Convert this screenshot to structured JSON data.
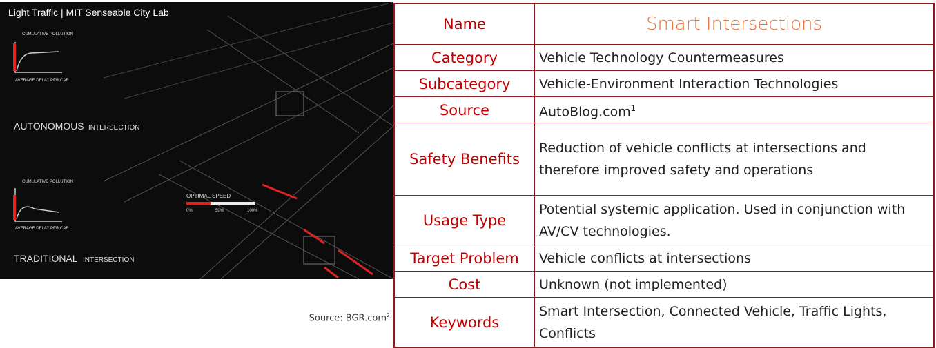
{
  "image": {
    "texts": {
      "title": "Light Traffic | MIT Senseable City Lab",
      "pollution_top": "CUMULATIVE POLLUTION",
      "delay_top": "AVERAGE DELAY PER CAR",
      "autonomous": "AUTONOMOUS",
      "autonomous_suffix": "INTERSECTION",
      "pollution_bottom": "CUMULATIVE POLLUTION",
      "delay_bottom": "AVERAGE DELAY PER CAR",
      "optimal_speed": "OPTIMAL SPEED",
      "speed_0": "0%",
      "speed_50": "50%",
      "speed_100": "100%",
      "traditional": "TRADITIONAL",
      "traditional_suffix": "INTERSECTION"
    }
  },
  "caption": {
    "text": "Source: BGR.com",
    "footnote": "2"
  },
  "table": {
    "rows": [
      [
        "Name",
        "Smart Intersections"
      ],
      [
        "Category",
        "Vehicle Technology Countermeasures"
      ],
      [
        "Subcategory",
        "Vehicle-Environment Interaction Technologies"
      ],
      [
        "Source",
        "AutoBlog.com"
      ],
      [
        "Safety Benefits",
        "Reduction of vehicle conflicts at intersections and therefore improved safety and operations"
      ],
      [
        "Usage Type",
        "Potential systemic application. Used in conjunction with AV/CV technologies."
      ],
      [
        "Target Problem",
        "Vehicle conflicts at intersections"
      ],
      [
        "Cost",
        "Unknown (not implemented)"
      ],
      [
        "Keywords",
        "Smart Intersection, Connected Vehicle, Traffic Lights, Conflicts"
      ]
    ],
    "source_footnote": "1"
  }
}
